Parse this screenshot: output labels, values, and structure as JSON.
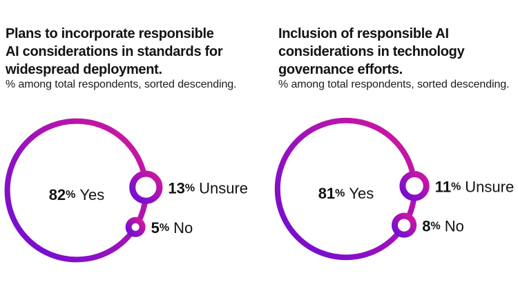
{
  "page": {
    "background": "#ffffff"
  },
  "colors": {
    "gradient_violet": "#6A0DD8",
    "gradient_magenta": "#D5179B",
    "text": "#121212"
  },
  "chart_data": [
    {
      "type": "bubble",
      "title": "Plans to incorporate responsible AI considerations in standards for widespread deployment.",
      "title_lines": [
        "Plans to incorporate responsible",
        "AI considerations in standards for",
        "widespread deployment."
      ],
      "subtitle": "% among total respondents, sorted descending.",
      "unit": "%",
      "sort": "descending",
      "legend_position": "inline",
      "categories": [
        "Yes",
        "Unsure",
        "No"
      ],
      "values": [
        82,
        13,
        5
      ],
      "slices": [
        {
          "label": "Yes",
          "value": 82
        },
        {
          "label": "Unsure",
          "value": 13
        },
        {
          "label": "No",
          "value": 5
        }
      ]
    },
    {
      "type": "bubble",
      "title": "Inclusion of responsible AI considerations in technology governance efforts.",
      "title_lines": [
        "Inclusion of responsible AI",
        "considerations in technology",
        "governance efforts."
      ],
      "subtitle": "% among total respondents, sorted descending.",
      "unit": "%",
      "sort": "descending",
      "legend_position": "inline",
      "categories": [
        "Yes",
        "Unsure",
        "No"
      ],
      "values": [
        81,
        11,
        8
      ],
      "slices": [
        {
          "label": "Yes",
          "value": 81
        },
        {
          "label": "Unsure",
          "value": 11
        },
        {
          "label": "No",
          "value": 8
        }
      ]
    }
  ]
}
